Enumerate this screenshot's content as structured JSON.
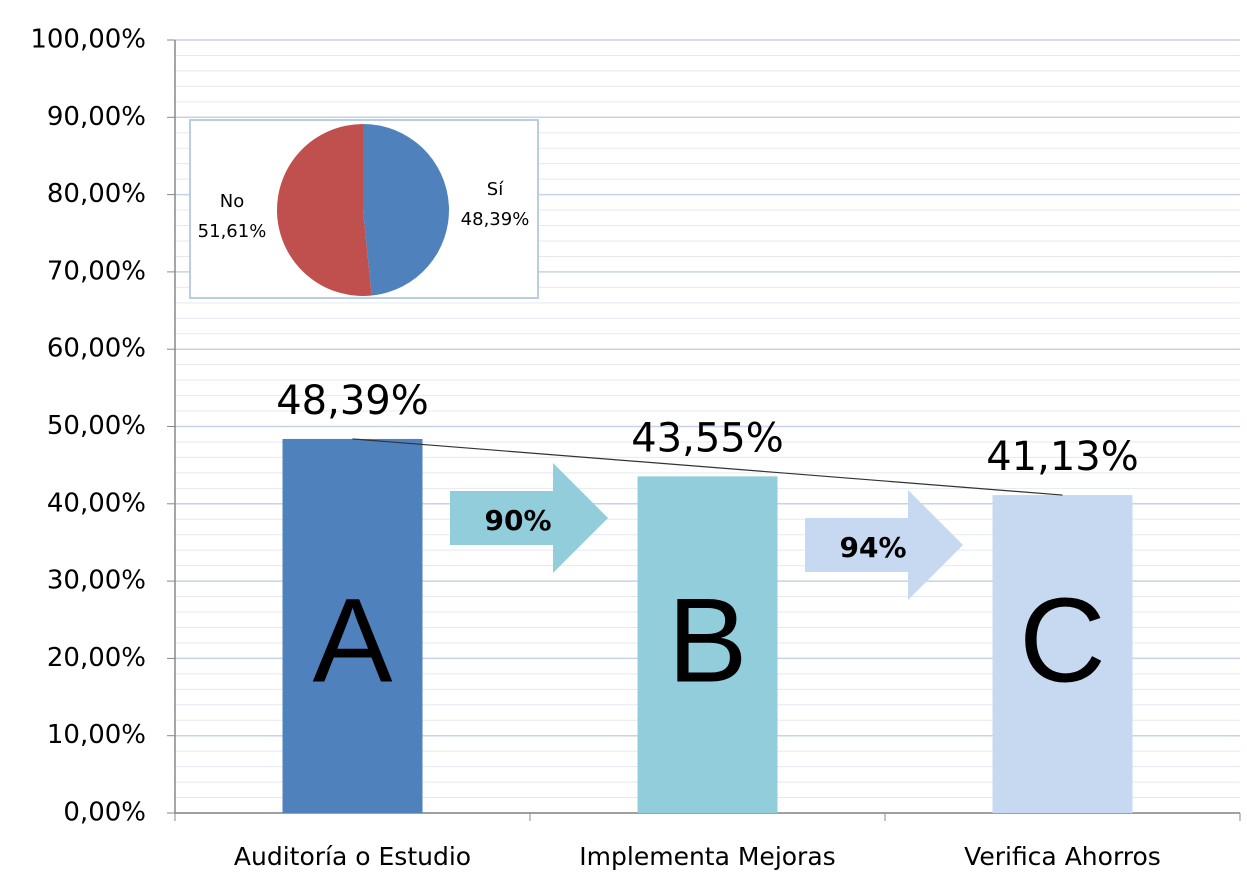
{
  "chart_data": [
    {
      "type": "bar",
      "categories": [
        "Auditoría o Estudio",
        "Implementa Mejoras",
        "Verifica Ahorros"
      ],
      "values": [
        48.39,
        43.55,
        41.13
      ],
      "value_labels": [
        "48,39%",
        "43,55%",
        "41,13%"
      ],
      "colors": [
        "#4f81bd",
        "#92cddc",
        "#c6d9f1"
      ],
      "bar_letters": [
        "A",
        "B",
        "C"
      ],
      "ratios": {
        "values": [
          90,
          94
        ],
        "value_labels": [
          "90%",
          "94%"
        ],
        "color": "#92cddc"
      },
      "ylim": [
        0,
        100
      ],
      "yticks": [
        {
          "value": 0,
          "label": "0,00%"
        },
        {
          "value": 10,
          "label": "10,00%"
        },
        {
          "value": 20,
          "label": "20,00%"
        },
        {
          "value": 30,
          "label": "30,00%"
        },
        {
          "value": 40,
          "label": "40,00%"
        },
        {
          "value": 50,
          "label": "50,00%"
        },
        {
          "value": 60,
          "label": "60,00%"
        },
        {
          "value": 70,
          "label": "70,00%"
        },
        {
          "value": 80,
          "label": "80,00%"
        },
        {
          "value": 90,
          "label": "90,00%"
        },
        {
          "value": 100,
          "label": "100,00%"
        }
      ],
      "grid": true
    },
    {
      "type": "pie",
      "categories": [
        "Sí",
        "No"
      ],
      "values": [
        48.39,
        51.61
      ],
      "value_labels": [
        "48,39%",
        "51,61%"
      ],
      "colors": [
        "#4f81bd",
        "#c0504d"
      ]
    }
  ]
}
